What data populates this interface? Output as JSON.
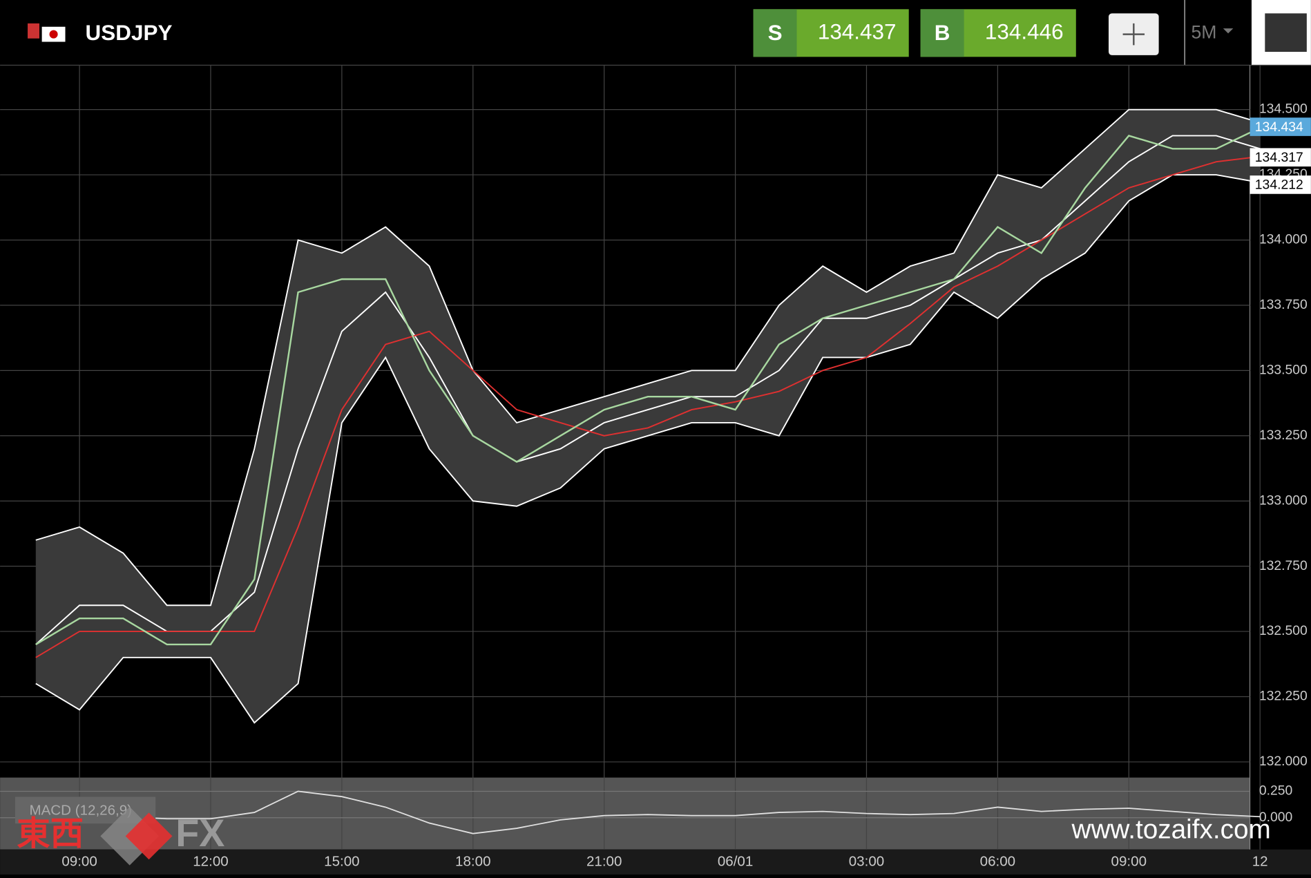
{
  "header": {
    "symbol": "USDJPY",
    "sell_label": "S",
    "sell_price": "134.437",
    "buy_label": "B",
    "buy_price": "134.446",
    "timeframe": "5M"
  },
  "chart_data": {
    "type": "line",
    "categories": [
      null,
      "09:00",
      null,
      null,
      "12:00",
      null,
      null,
      "15:00",
      null,
      null,
      "18:00",
      null,
      null,
      "21:00",
      null,
      null,
      "06/01",
      null,
      null,
      "03:00",
      null,
      null,
      "06:00",
      null,
      null,
      "09:00",
      null,
      null,
      "12"
    ],
    "series": [
      {
        "color": "#a8d8a0",
        "values": [
          132.45,
          132.55,
          132.55,
          132.45,
          132.45,
          132.7,
          133.8,
          133.85,
          133.85,
          133.5,
          133.25,
          133.15,
          133.25,
          133.35,
          133.4,
          133.4,
          133.35,
          133.6,
          133.7,
          133.75,
          133.8,
          133.85,
          134.05,
          133.95,
          134.2,
          134.4,
          134.35,
          134.35,
          134.43
        ]
      },
      {
        "color": "#ffffff",
        "values": [
          132.85,
          132.9,
          132.8,
          132.6,
          132.6,
          133.2,
          134.0,
          133.95,
          134.05,
          133.9,
          133.5,
          133.3,
          133.35,
          133.4,
          133.45,
          133.5,
          133.5,
          133.75,
          133.9,
          133.8,
          133.9,
          133.95,
          134.25,
          134.2,
          134.35,
          134.5,
          134.5,
          134.5,
          134.45
        ]
      },
      {
        "color": "#ffffff",
        "values": [
          132.3,
          132.2,
          132.4,
          132.4,
          132.4,
          132.15,
          132.3,
          133.3,
          133.55,
          133.2,
          133.0,
          132.98,
          133.05,
          133.2,
          133.25,
          133.3,
          133.3,
          133.25,
          133.55,
          133.55,
          133.6,
          133.8,
          133.7,
          133.85,
          133.95,
          134.15,
          134.25,
          134.25,
          134.22
        ]
      },
      {
        "color": "#ffffff",
        "values": [
          132.45,
          132.6,
          132.6,
          132.5,
          132.5,
          132.65,
          133.2,
          133.65,
          133.8,
          133.55,
          133.25,
          133.15,
          133.2,
          133.3,
          133.35,
          133.4,
          133.4,
          133.5,
          133.7,
          133.7,
          133.75,
          133.85,
          133.95,
          134.0,
          134.15,
          134.3,
          134.4,
          134.4,
          134.35
        ]
      },
      {
        "color": "#e03030",
        "values": [
          132.4,
          132.5,
          132.5,
          132.5,
          132.5,
          132.5,
          132.9,
          133.35,
          133.6,
          133.65,
          133.5,
          133.35,
          133.3,
          133.25,
          133.28,
          133.35,
          133.38,
          133.42,
          133.5,
          133.55,
          133.68,
          133.82,
          133.9,
          134.0,
          134.1,
          134.2,
          134.25,
          134.3,
          134.32
        ]
      }
    ],
    "ylim": [
      131.94,
      134.67
    ],
    "yticks": [
      {
        "value": 132,
        "label": "132.000"
      },
      {
        "value": 132.25,
        "label": "132.250"
      },
      {
        "value": 132.5,
        "label": "132.500"
      },
      {
        "value": 132.75,
        "label": "132.750"
      },
      {
        "value": 133,
        "label": "133.000"
      },
      {
        "value": 133.25,
        "label": "133.250"
      },
      {
        "value": 133.5,
        "label": "133.500"
      },
      {
        "value": 133.75,
        "label": "133.750"
      },
      {
        "value": 134,
        "label": "134.000"
      },
      {
        "value": 134.25,
        "label": "134.250"
      },
      {
        "value": 134.5,
        "label": "134.500"
      }
    ],
    "price_markers": [
      134.434,
      134.317,
      134.212
    ],
    "price_marker_colors": [
      "#5aa9dc",
      "#ffffff",
      "#ffffff"
    ],
    "grid": true,
    "macd": {
      "label": "MACD (12,26,9)",
      "ylim": [
        -0.3,
        0.38
      ],
      "yticks": [
        {
          "value": 0.25,
          "label": "0.250"
        },
        {
          "value": 0,
          "label": "0.000"
        }
      ],
      "color": "#e0e0e0",
      "values": [
        0,
        0,
        0.01,
        -0.01,
        -0.01,
        0.05,
        0.25,
        0.2,
        0.1,
        -0.05,
        -0.15,
        -0.1,
        -0.02,
        0.02,
        0.03,
        0.02,
        0.02,
        0.05,
        0.06,
        0.04,
        0.03,
        0.04,
        0.1,
        0.06,
        0.08,
        0.09,
        0.06,
        0.03,
        0.01
      ]
    }
  },
  "watermark": {
    "logo_left": "東西",
    "logo_right": "FX",
    "url": "www.tozaifx.com"
  }
}
